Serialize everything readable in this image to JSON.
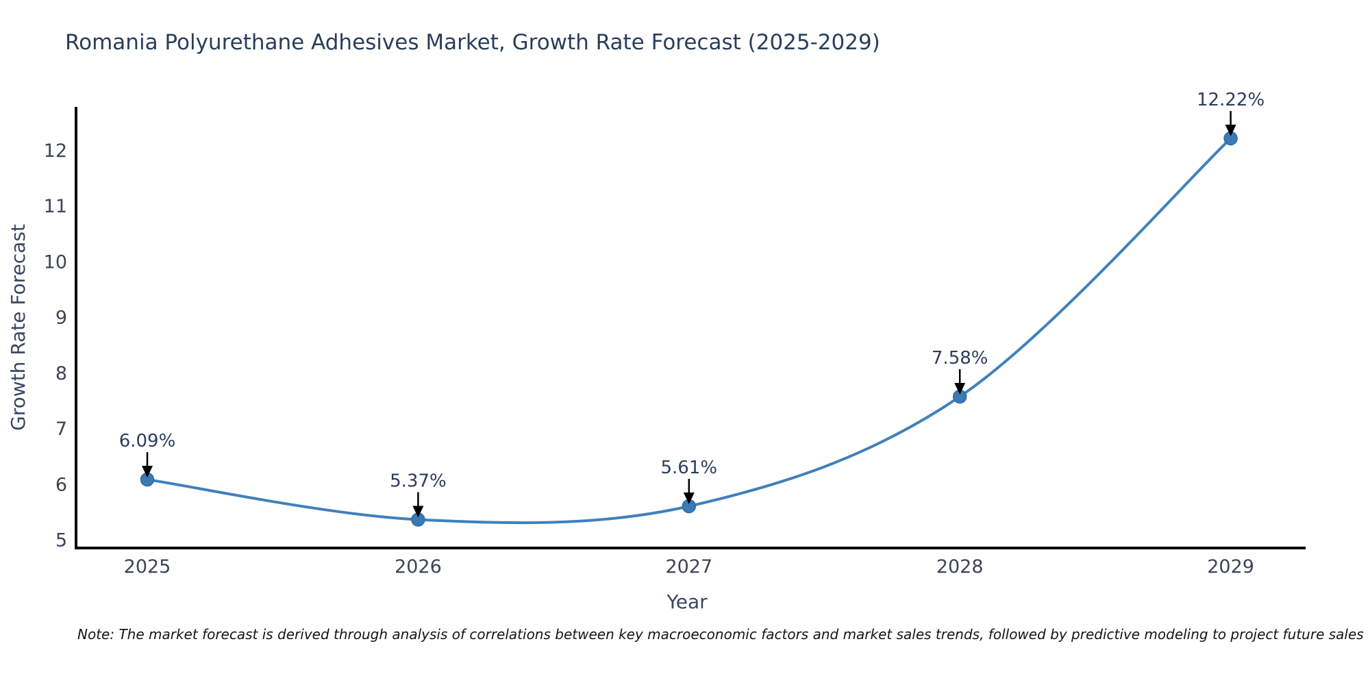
{
  "title": "Romania Polyurethane Adhesives Market, Growth Rate Forecast (2025-2029)",
  "note": "Note: The market forecast is derived through analysis of correlations between key macroeconomic factors and market sales trends, followed by predictive modeling to project future sales",
  "chart_data": {
    "type": "line",
    "x": [
      "2025",
      "2026",
      "2027",
      "2028",
      "2029"
    ],
    "series": [
      {
        "name": "Growth Rate Forecast",
        "values": [
          6.09,
          5.37,
          5.61,
          7.58,
          12.22
        ]
      }
    ],
    "point_labels": [
      "6.09%",
      "5.37%",
      "5.61%",
      "7.58%",
      "12.22%"
    ],
    "xlabel": "Year",
    "ylabel": "Growth Rate Forecast",
    "yticks": [
      5,
      6,
      7,
      8,
      9,
      10,
      11,
      12
    ],
    "ylim": [
      5,
      12.8
    ],
    "grid": false,
    "legend": false,
    "colors": {
      "line": "#3f81bb",
      "marker": "#3a7ab5",
      "marker_edge": "#2f6ba3",
      "arrow": "#000000",
      "title_text": "#2b3d5c",
      "axis_label_text": "#3a4660",
      "tick_text": "#3c4454",
      "annotation_text": "#2b3d5c",
      "spine": "#000000"
    }
  }
}
